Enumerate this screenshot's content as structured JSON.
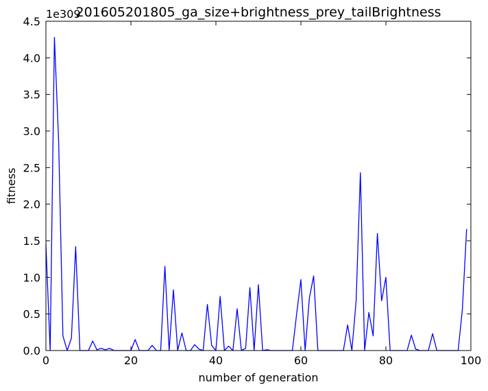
{
  "chart_data": {
    "type": "line",
    "title": "201605201805_ga_size+brightness_prey_tailBrightness",
    "xlabel": "number of generation",
    "ylabel": "fitness",
    "y_offset_label": "1e309",
    "xlim": [
      0,
      100
    ],
    "ylim": [
      0,
      4.5
    ],
    "x_ticks": [
      0,
      20,
      40,
      60,
      80,
      100
    ],
    "y_ticks": [
      0.0,
      0.5,
      1.0,
      1.5,
      2.0,
      2.5,
      3.0,
      3.5,
      4.0,
      4.5
    ],
    "x_tick_labels": [
      "0",
      "20",
      "40",
      "60",
      "80",
      "100"
    ],
    "y_tick_labels": [
      "0.0",
      "0.5",
      "1.0",
      "1.5",
      "2.0",
      "2.5",
      "3.0",
      "3.5",
      "4.0",
      "4.5"
    ],
    "grid": false,
    "series": [
      {
        "color": "#0000ff",
        "x": [
          0,
          1,
          2,
          3,
          4,
          5,
          6,
          7,
          8,
          9,
          10,
          11,
          12,
          13,
          14,
          15,
          16,
          17,
          18,
          19,
          20,
          21,
          22,
          23,
          24,
          25,
          26,
          27,
          28,
          29,
          30,
          31,
          32,
          33,
          34,
          35,
          36,
          37,
          38,
          39,
          40,
          41,
          42,
          43,
          44,
          45,
          46,
          47,
          48,
          49,
          50,
          51,
          52,
          53,
          54,
          55,
          56,
          57,
          58,
          59,
          60,
          61,
          62,
          63,
          64,
          65,
          66,
          67,
          68,
          69,
          70,
          71,
          72,
          73,
          74,
          75,
          76,
          77,
          78,
          79,
          80,
          81,
          82,
          83,
          84,
          85,
          86,
          87,
          88,
          89,
          90,
          91,
          92,
          93,
          94,
          95,
          96,
          97,
          98,
          99
        ],
        "y": [
          1.45,
          0.0,
          4.28,
          2.85,
          0.2,
          0.0,
          0.17,
          1.42,
          0.0,
          0.0,
          0.0,
          0.13,
          0.01,
          0.03,
          0.01,
          0.03,
          0.0,
          0.0,
          0.0,
          0.0,
          0.0,
          0.15,
          0.0,
          0.0,
          0.0,
          0.07,
          0.0,
          0.0,
          1.15,
          0.0,
          0.83,
          0.0,
          0.24,
          0.0,
          0.0,
          0.08,
          0.02,
          0.0,
          0.63,
          0.07,
          0.0,
          0.74,
          0.0,
          0.06,
          0.0,
          0.57,
          0.0,
          0.03,
          0.86,
          0.0,
          0.9,
          0.0,
          0.01,
          0.0,
          0.0,
          0.0,
          0.0,
          0.0,
          0.0,
          0.5,
          0.97,
          0.0,
          0.72,
          1.02,
          0.0,
          0.0,
          0.0,
          0.0,
          0.0,
          0.0,
          0.0,
          0.35,
          0.0,
          0.68,
          2.43,
          0.0,
          0.52,
          0.2,
          1.6,
          0.68,
          1.0,
          0.0,
          0.0,
          0.0,
          0.0,
          0.0,
          0.21,
          0.02,
          0.0,
          0.0,
          0.0,
          0.23,
          0.0,
          0.0,
          0.0,
          0.0,
          0.0,
          0.0,
          0.56,
          1.66
        ]
      }
    ]
  }
}
